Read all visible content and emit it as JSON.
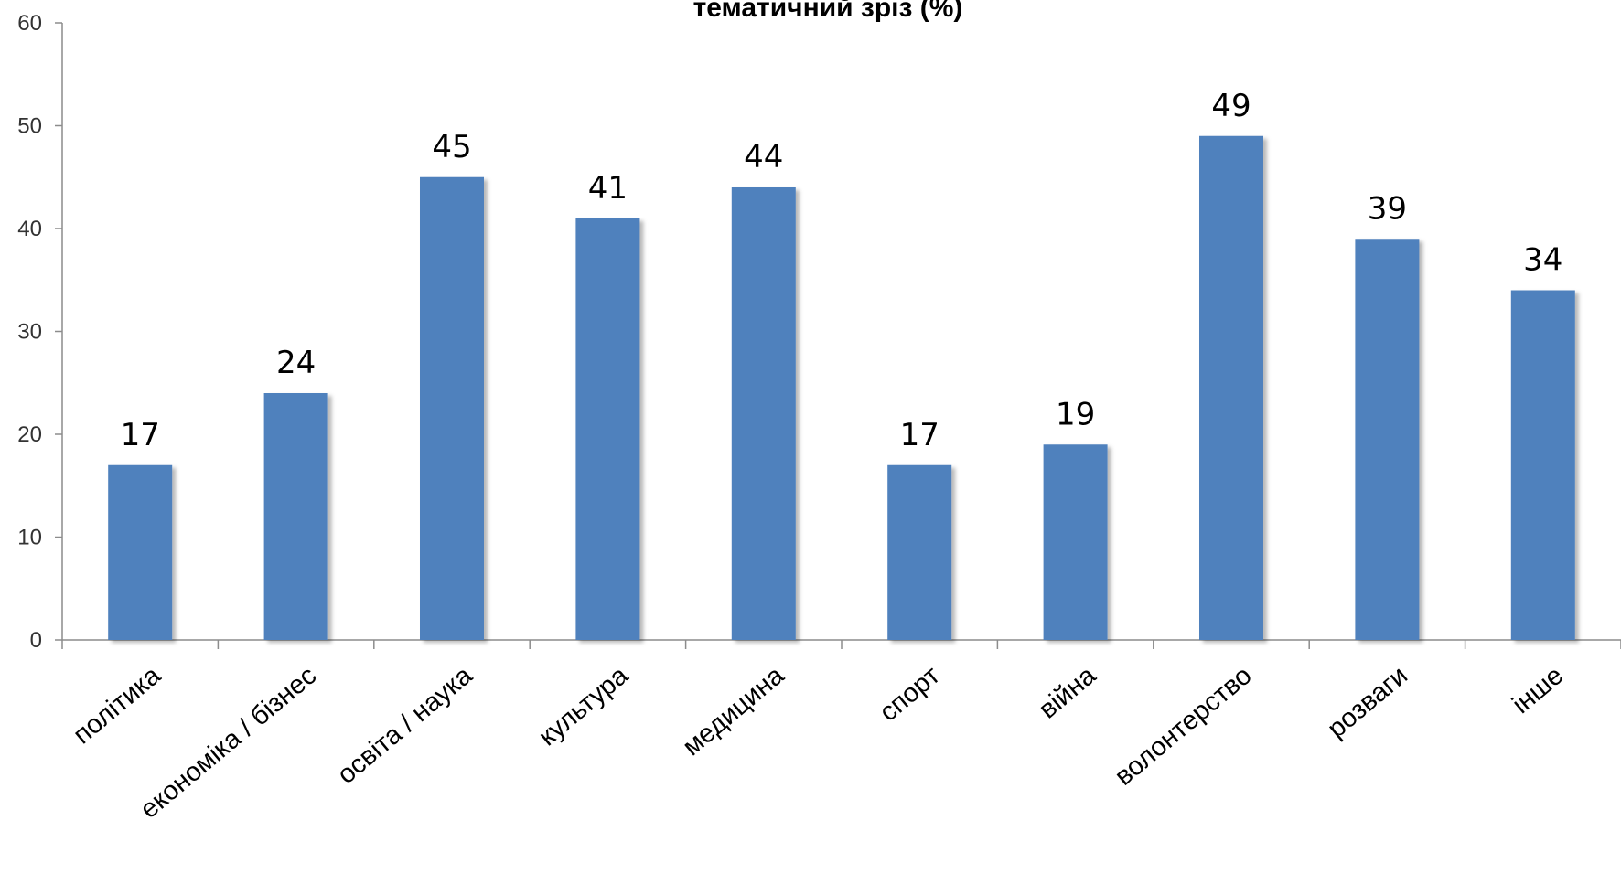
{
  "chart_data": {
    "type": "bar",
    "title": "тематичний зріз (%)",
    "xlabel": "",
    "ylabel": "",
    "ylim": [
      0,
      60
    ],
    "yticks": [
      0,
      10,
      20,
      30,
      40,
      50,
      60
    ],
    "grid": false,
    "legend": "none",
    "categories": [
      "політика",
      "економіка / бізнес",
      "освіта / наука",
      "культура",
      "медицина",
      "спорт",
      "війна",
      "волонтерство",
      "розваги",
      "інше"
    ],
    "values": [
      17,
      24,
      45,
      41,
      44,
      17,
      19,
      49,
      39,
      34
    ],
    "bar_color": "#4f81bd",
    "data_labels": true
  }
}
